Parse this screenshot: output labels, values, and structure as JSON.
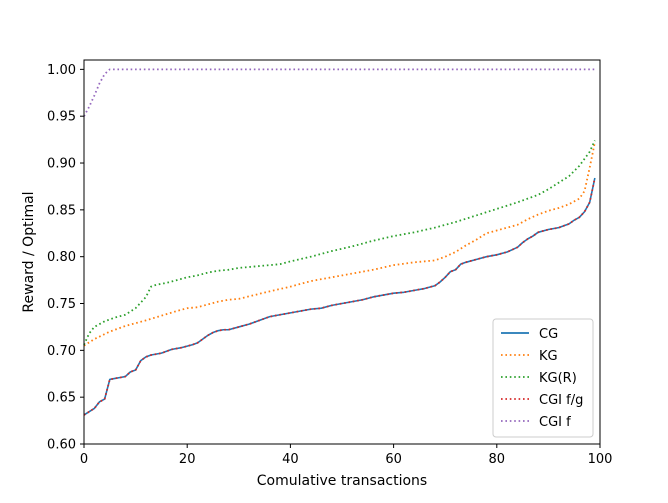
{
  "chart_data": {
    "type": "line",
    "title": "",
    "xlabel": "Comulative transactions",
    "ylabel": "Reward / Optimal",
    "xlim": [
      0,
      100
    ],
    "ylim": [
      0.6,
      1.01
    ],
    "x_ticks": [
      0,
      20,
      40,
      60,
      80,
      100
    ],
    "y_ticks": [
      0.6,
      0.65,
      0.7,
      0.75,
      0.8,
      0.85,
      0.9,
      0.95,
      1.0
    ],
    "x_tick_labels": [
      "0",
      "20",
      "40",
      "60",
      "80",
      "100"
    ],
    "y_tick_labels": [
      "0.60",
      "0.65",
      "0.70",
      "0.75",
      "0.80",
      "0.85",
      "0.90",
      "0.95",
      "1.00"
    ],
    "grid": false,
    "legend_position": "lower-right",
    "series": [
      {
        "name": "CG",
        "color": "#1f77b4",
        "style": "solid",
        "x": [
          0,
          2,
          3,
          4,
          5,
          6,
          7,
          8,
          9,
          10,
          11,
          12,
          13,
          15,
          17,
          19,
          21,
          22,
          23,
          24,
          25,
          26,
          27,
          28,
          30,
          32,
          34,
          36,
          38,
          40,
          42,
          44,
          46,
          48,
          50,
          52,
          54,
          56,
          58,
          60,
          62,
          64,
          66,
          68,
          69,
          70,
          71,
          72,
          73,
          74,
          76,
          78,
          80,
          82,
          84,
          85,
          86,
          87,
          88,
          90,
          92,
          94,
          95,
          96,
          97,
          98,
          99
        ],
        "values": [
          0.631,
          0.638,
          0.645,
          0.648,
          0.669,
          0.67,
          0.671,
          0.672,
          0.677,
          0.679,
          0.689,
          0.693,
          0.695,
          0.697,
          0.701,
          0.703,
          0.706,
          0.708,
          0.712,
          0.716,
          0.719,
          0.721,
          0.722,
          0.722,
          0.725,
          0.728,
          0.732,
          0.736,
          0.738,
          0.74,
          0.742,
          0.744,
          0.745,
          0.748,
          0.75,
          0.752,
          0.754,
          0.757,
          0.759,
          0.761,
          0.762,
          0.764,
          0.766,
          0.769,
          0.773,
          0.778,
          0.784,
          0.786,
          0.792,
          0.794,
          0.797,
          0.8,
          0.802,
          0.805,
          0.81,
          0.815,
          0.819,
          0.822,
          0.826,
          0.829,
          0.831,
          0.835,
          0.839,
          0.842,
          0.848,
          0.858,
          0.884
        ]
      },
      {
        "name": "KG",
        "color": "#ff7f0e",
        "style": "dotted",
        "x": [
          0,
          2,
          5,
          8,
          10,
          12,
          15,
          18,
          20,
          22,
          24,
          26,
          28,
          30,
          33,
          36,
          40,
          44,
          48,
          52,
          56,
          60,
          64,
          68,
          70,
          72,
          74,
          76,
          78,
          80,
          82,
          84,
          86,
          88,
          90,
          92,
          94,
          96,
          97,
          98,
          99
        ],
        "values": [
          0.705,
          0.712,
          0.72,
          0.726,
          0.729,
          0.732,
          0.737,
          0.742,
          0.745,
          0.746,
          0.749,
          0.752,
          0.754,
          0.755,
          0.759,
          0.763,
          0.768,
          0.774,
          0.778,
          0.782,
          0.786,
          0.791,
          0.794,
          0.796,
          0.8,
          0.805,
          0.812,
          0.818,
          0.825,
          0.828,
          0.831,
          0.834,
          0.84,
          0.845,
          0.849,
          0.852,
          0.856,
          0.862,
          0.87,
          0.895,
          0.922
        ]
      },
      {
        "name": "KG(R)",
        "color": "#2ca02c",
        "style": "dotted",
        "x": [
          0,
          1,
          2,
          4,
          6,
          8,
          10,
          12,
          13,
          14,
          16,
          18,
          20,
          22,
          24,
          26,
          28,
          30,
          32,
          34,
          36,
          38,
          40,
          44,
          48,
          52,
          56,
          60,
          64,
          68,
          72,
          76,
          80,
          84,
          88,
          90,
          92,
          94,
          96,
          98,
          99
        ],
        "values": [
          0.706,
          0.718,
          0.725,
          0.731,
          0.735,
          0.738,
          0.745,
          0.757,
          0.768,
          0.77,
          0.772,
          0.775,
          0.778,
          0.78,
          0.783,
          0.785,
          0.786,
          0.788,
          0.789,
          0.79,
          0.791,
          0.792,
          0.795,
          0.8,
          0.806,
          0.811,
          0.817,
          0.822,
          0.826,
          0.831,
          0.837,
          0.844,
          0.851,
          0.858,
          0.866,
          0.872,
          0.879,
          0.886,
          0.897,
          0.912,
          0.924
        ]
      },
      {
        "name": "CGI f/g",
        "color": "#d62728",
        "style": "dotted",
        "x": [
          0,
          2,
          3,
          4,
          5,
          6,
          7,
          8,
          9,
          10,
          11,
          12,
          13,
          15,
          17,
          19,
          21,
          22,
          23,
          24,
          25,
          26,
          27,
          28,
          30,
          32,
          34,
          36,
          38,
          40,
          42,
          44,
          46,
          48,
          50,
          52,
          54,
          56,
          58,
          60,
          62,
          64,
          66,
          68,
          69,
          70,
          71,
          72,
          73,
          74,
          76,
          78,
          80,
          82,
          84,
          85,
          86,
          87,
          88,
          90,
          92,
          94,
          95,
          96,
          97,
          98,
          99
        ],
        "values": [
          0.631,
          0.638,
          0.645,
          0.648,
          0.669,
          0.67,
          0.671,
          0.672,
          0.677,
          0.679,
          0.689,
          0.693,
          0.695,
          0.697,
          0.701,
          0.703,
          0.706,
          0.708,
          0.712,
          0.716,
          0.719,
          0.721,
          0.722,
          0.722,
          0.725,
          0.728,
          0.732,
          0.736,
          0.738,
          0.74,
          0.742,
          0.744,
          0.745,
          0.748,
          0.75,
          0.752,
          0.754,
          0.757,
          0.759,
          0.761,
          0.762,
          0.764,
          0.766,
          0.769,
          0.773,
          0.778,
          0.784,
          0.786,
          0.792,
          0.794,
          0.797,
          0.8,
          0.802,
          0.805,
          0.81,
          0.815,
          0.819,
          0.822,
          0.826,
          0.829,
          0.831,
          0.835,
          0.839,
          0.842,
          0.848,
          0.858,
          0.884
        ]
      },
      {
        "name": "CGI f",
        "color": "#9467bd",
        "style": "dotted",
        "x": [
          0,
          1,
          2,
          3,
          4,
          5,
          10,
          20,
          40,
          60,
          80,
          99
        ],
        "values": [
          0.95,
          0.96,
          0.972,
          0.985,
          0.995,
          1.0,
          1.0,
          1.0,
          1.0,
          1.0,
          1.0,
          1.0
        ]
      }
    ]
  }
}
